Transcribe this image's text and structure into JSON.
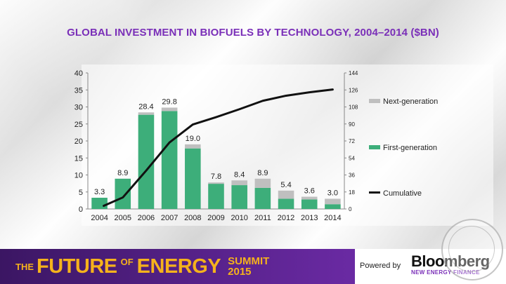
{
  "title": "GLOBAL INVESTMENT IN BIOFUELS BY TECHNOLOGY, 2004–2014 ($BN)",
  "footer": {
    "brand_the": "THE",
    "brand_future": "FUTURE",
    "brand_of": "OF",
    "brand_energy": "ENERGY",
    "brand_summit": "SUMMIT",
    "brand_year": "2015",
    "powered_by": "Powered by",
    "bnef_name": "Bloomberg",
    "bnef_sub": "NEW ENERGY FINANCE"
  },
  "colors": {
    "title": "#7a2fb8",
    "first_gen": "#3dae7a",
    "next_gen": "#bfbfbf",
    "cumulative": "#111111"
  },
  "chart_data": {
    "type": "bar",
    "stacked": true,
    "categories": [
      "2004",
      "2005",
      "2006",
      "2007",
      "2008",
      "2009",
      "2010",
      "2011",
      "2012",
      "2013",
      "2014"
    ],
    "series": [
      {
        "name": "First-generation",
        "values": [
          3.3,
          8.9,
          27.7,
          28.8,
          17.8,
          7.4,
          7.0,
          6.2,
          3.0,
          2.8,
          1.4
        ]
      },
      {
        "name": "Next-generation",
        "values": [
          0.0,
          0.0,
          0.7,
          1.0,
          1.2,
          0.4,
          1.4,
          2.7,
          2.4,
          0.8,
          1.6
        ]
      }
    ],
    "totals": [
      3.3,
      8.9,
      28.4,
      29.8,
      19.0,
      7.8,
      8.4,
      8.9,
      5.4,
      3.6,
      3.0
    ],
    "total_labels": [
      "3.3",
      "8.9",
      "28.4",
      "29.8",
      "19.0",
      "7.8",
      "8.4",
      "8.9",
      "5.4",
      "3.6",
      "3.0"
    ],
    "line": {
      "name": "Cumulative",
      "axis": "right",
      "values": [
        3.3,
        12.2,
        40.6,
        70.4,
        89.4,
        97.2,
        105.6,
        114.5,
        119.9,
        123.5,
        126.5
      ]
    },
    "y_left": {
      "range": [
        0,
        40
      ],
      "ticks": [
        "0",
        "5",
        "10",
        "15",
        "20",
        "25",
        "30",
        "35",
        "40"
      ]
    },
    "y_right": {
      "range": [
        0,
        144
      ],
      "ticks": [
        "0",
        "18",
        "36",
        "54",
        "72",
        "90",
        "108",
        "126",
        "144"
      ]
    },
    "legend_position": "right",
    "grid": false
  }
}
